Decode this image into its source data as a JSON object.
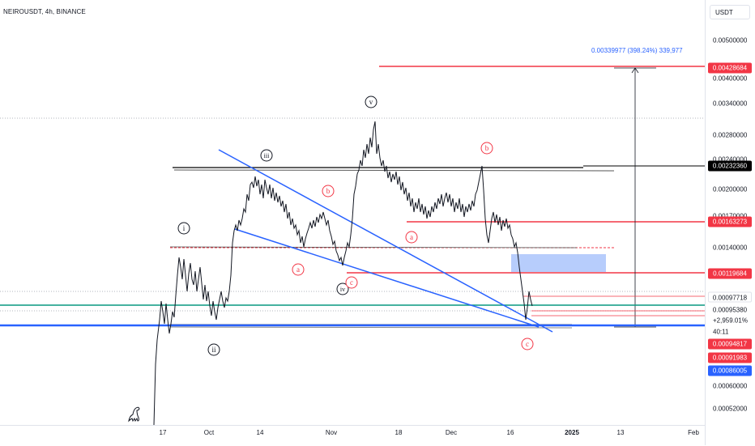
{
  "header": {
    "symbol_title": "NEIROUSDT, 4h, BINANCE",
    "currency": "USDT"
  },
  "price_axis": {
    "ticks": [
      {
        "label": "0.00500000",
        "value": 0.005
      },
      {
        "label": "0.00400000",
        "value": 0.004
      },
      {
        "label": "0.00340000",
        "value": 0.0034
      },
      {
        "label": "0.00280000",
        "value": 0.0028
      },
      {
        "label": "0.00240000",
        "value": 0.0024
      },
      {
        "label": "0.00200000",
        "value": 0.002
      },
      {
        "label": "0.00170000",
        "value": 0.0017
      },
      {
        "label": "0.00140000",
        "value": 0.0014
      },
      {
        "label": "0.00060000",
        "value": 0.0006
      },
      {
        "label": "0.00052000",
        "value": 0.00052
      }
    ],
    "tags": [
      {
        "label": "0.00428684",
        "value": 0.00428684,
        "color": "#f23645"
      },
      {
        "label": "0.00232360",
        "value": 0.0023236,
        "color": "#000000"
      },
      {
        "label": "0.00163273",
        "value": 0.00163273,
        "color": "#f23645"
      },
      {
        "label": "0.00119684",
        "value": 0.00119684,
        "color": "#f23645"
      },
      {
        "label": "0.00097718",
        "value": 0.00097718,
        "color": "#089981"
      },
      {
        "label": "0.00095380",
        "value": 0.0009538,
        "color": "#131722"
      },
      {
        "label": "0.00094817",
        "value": 0.00094817,
        "color": "#f23645"
      },
      {
        "label": "0.00091983",
        "value": 0.00091983,
        "color": "#f23645"
      },
      {
        "label": "0.00086005",
        "value": 0.00086005,
        "color": "#2962ff"
      }
    ],
    "change_percent": "+2,959.01%",
    "countdown": "40:11"
  },
  "time_axis": {
    "ticks": [
      "17",
      "Oct",
      "14",
      "Nov",
      "18",
      "Dec",
      "16",
      "2025",
      "13",
      "Feb"
    ]
  },
  "measure": {
    "label": "0.00339977 (398.24%) 339,977"
  },
  "wave_labels": {
    "i": "i",
    "ii": "ii",
    "iii": "iii",
    "iv": "iv",
    "v": "v",
    "a1": "a",
    "b1": "b",
    "c1": "c",
    "a2": "a",
    "b2": "b",
    "c2": "c"
  },
  "colors": {
    "up": "#000000",
    "down": "#000000",
    "red_level": "#f23645",
    "blue_trend": "#2962ff",
    "green_line": "#089981",
    "zone": "#aac4fb"
  },
  "icons": {
    "logo": "dinosaur-icon"
  }
}
